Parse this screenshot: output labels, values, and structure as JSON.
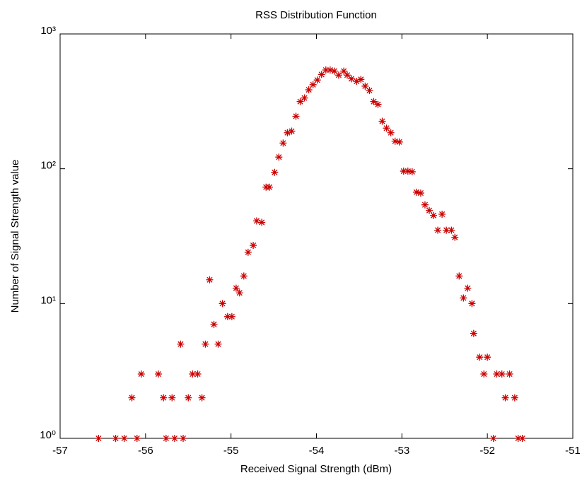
{
  "chart_data": {
    "type": "scatter",
    "title": "RSS Distribution Function",
    "x_label": "Received Signal Strength (dBm)",
    "y_label": "Number of Signal Strength value",
    "color": "#cc0000",
    "ylog": true,
    "xlim": [
      -57,
      -51
    ],
    "xticks": [
      -57,
      -56,
      -55,
      -54,
      -53,
      -52,
      -51
    ],
    "ylim": [
      1,
      1000
    ],
    "yticks": [
      {
        "value": 1,
        "label": "10⁰"
      },
      {
        "value": 10,
        "label": "10¹"
      },
      {
        "value": 100,
        "label": "10²"
      },
      {
        "value": 1000,
        "label": "10³"
      }
    ],
    "x": [
      -56.55,
      -56.35,
      -56.25,
      -56.16,
      -56.1,
      -56.05,
      -55.85,
      -55.79,
      -55.76,
      -55.69,
      -55.66,
      -55.59,
      -55.56,
      -55.5,
      -55.45,
      -55.39,
      -55.34,
      -55.3,
      -55.25,
      -55.2,
      -55.15,
      -55.1,
      -55.04,
      -54.99,
      -54.94,
      -54.9,
      -54.85,
      -54.8,
      -54.74,
      -54.7,
      -54.64,
      -54.59,
      -54.55,
      -54.49,
      -54.44,
      -54.39,
      -54.34,
      -54.29,
      -54.24,
      -54.19,
      -54.14,
      -54.09,
      -54.04,
      -53.99,
      -53.94,
      -53.89,
      -53.84,
      -53.79,
      -53.74,
      -53.68,
      -53.64,
      -53.59,
      -53.53,
      -53.48,
      -53.43,
      -53.38,
      -53.33,
      -53.28,
      -53.23,
      -53.18,
      -53.13,
      -53.08,
      -53.03,
      -52.98,
      -52.93,
      -52.88,
      -52.83,
      -52.78,
      -52.73,
      -52.68,
      -52.63,
      -52.58,
      -52.53,
      -52.48,
      -52.42,
      -52.38,
      -52.33,
      -52.28,
      -52.23,
      -52.18,
      -52.16,
      -52.09,
      -52.04,
      -52.0,
      -51.93,
      -51.89,
      -51.83,
      -51.79,
      -51.74,
      -51.68,
      -51.64,
      -51.59
    ],
    "values": [
      1,
      1,
      1,
      2,
      1,
      3,
      3,
      2,
      1,
      2,
      1,
      5,
      1,
      2,
      3,
      3,
      2,
      5,
      15,
      7,
      5,
      10,
      8,
      8,
      13,
      12,
      16,
      24,
      27,
      41,
      40,
      73,
      73,
      94,
      122,
      155,
      185,
      190,
      245,
      315,
      335,
      385,
      420,
      455,
      500,
      540,
      540,
      530,
      495,
      530,
      495,
      465,
      445,
      460,
      410,
      380,
      315,
      300,
      225,
      200,
      185,
      160,
      158,
      96,
      96,
      95,
      67,
      66,
      54,
      49,
      45,
      35,
      46,
      35,
      35,
      31,
      16,
      11,
      13,
      10,
      6,
      4,
      3,
      4,
      1,
      3,
      3,
      2,
      3,
      2,
      1,
      1
    ]
  }
}
